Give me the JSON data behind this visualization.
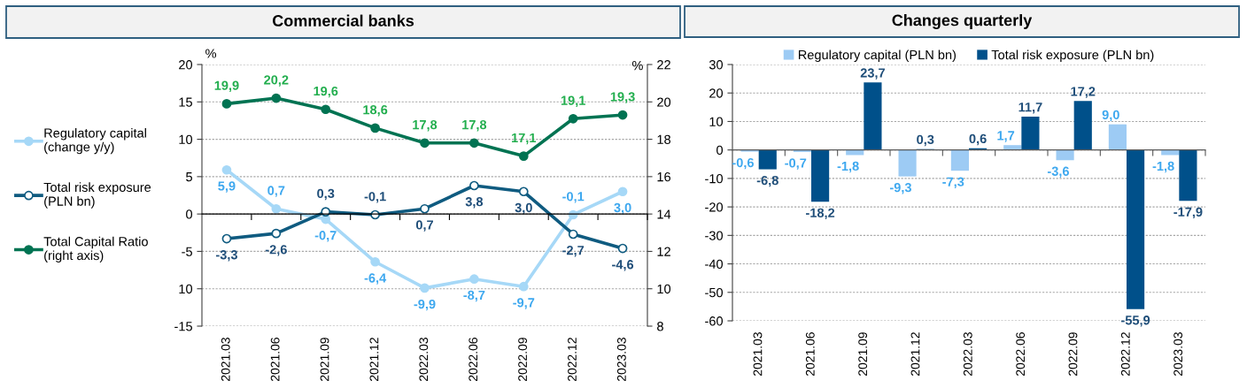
{
  "chart_data": [
    {
      "type": "line",
      "title": "Commercial banks",
      "ylabel": "%",
      "y2label": "%",
      "categories": [
        "2021.03",
        "2021.06",
        "2021.09",
        "2021.12",
        "2022.03",
        "2022.06",
        "2022.09",
        "2022.12",
        "2023.03"
      ],
      "series": [
        {
          "name": "Regulatory capital\n(change y/y)",
          "color": "#a6d8f7",
          "marker": "circle",
          "values": [
            5.9,
            0.7,
            -0.7,
            -6.4,
            -9.9,
            -8.7,
            -9.7,
            -0.1,
            3.0
          ],
          "value_labels": [
            "5,9",
            "0,7",
            "-0,7",
            "-6,4",
            "-9,9",
            "-8,7",
            "-9,7",
            "-0,1",
            "3,0"
          ]
        },
        {
          "name": "Total risk exposure\n(PLN bn)",
          "color": "#0f5b80",
          "marker": "circle",
          "values": [
            -3.3,
            -2.6,
            0.3,
            -0.1,
            0.7,
            3.8,
            3.0,
            -2.7,
            -4.6
          ],
          "value_labels": [
            "-3,3",
            "-2,6",
            "0,3",
            "-0,1",
            "0,7",
            "3,8",
            "3,0",
            "-2,7",
            "-4,6"
          ]
        },
        {
          "name": "Total Capital Ratio\n(right axis)",
          "color": "#007352",
          "marker": "circle",
          "axis": "y2",
          "values": [
            19.9,
            20.2,
            19.6,
            18.6,
            17.8,
            17.8,
            17.1,
            19.1,
            19.3
          ],
          "value_labels": [
            "19,9",
            "20,2",
            "19,6",
            "18,6",
            "17,8",
            "17,8",
            "17,1",
            "19,1",
            "19,3"
          ]
        }
      ],
      "ylim": [
        -15,
        20
      ],
      "yticks": [
        -15,
        {
          "value": -10,
          "label": "10"
        },
        -5,
        0,
        5,
        10,
        15,
        20
      ],
      "y2lim": [
        8,
        22
      ],
      "y2ticks": [
        8,
        10,
        12,
        14,
        16,
        18,
        20,
        22
      ],
      "grid": "y",
      "legend": "left"
    },
    {
      "type": "bar",
      "title": "Changes quarterly",
      "categories": [
        "2021.03",
        "2021.06",
        "2021.09",
        "2021.12",
        "2022.03",
        "2022.06",
        "2022.09",
        "2022.12",
        "2023.03"
      ],
      "series": [
        {
          "name": "Regulatory capital (PLN bn)",
          "color": "#9dcbf4",
          "values": [
            -0.6,
            -0.7,
            -1.8,
            -9.3,
            -7.3,
            1.7,
            -3.6,
            9.0,
            -1.8
          ],
          "value_labels": [
            "-0,6",
            "-0,7",
            "-1,8",
            "-9,3",
            "-7,3",
            "1,7",
            "-3,6",
            "9,0",
            "-1,8"
          ]
        },
        {
          "name": "Total risk exposure (PLN bn)",
          "color": "#00508a",
          "values": [
            -6.8,
            -18.2,
            23.7,
            0.3,
            0.6,
            11.7,
            17.2,
            -55.9,
            -17.9
          ],
          "value_labels": [
            "-6,8",
            "-18,2",
            "23,7",
            "0,3",
            "0,6",
            "11,7",
            "17,2",
            "-55,9",
            "-17,9"
          ]
        }
      ],
      "ylim": [
        -60,
        30
      ],
      "yticks": [
        -60,
        -50,
        -40,
        -30,
        -20,
        -10,
        0,
        10,
        20,
        30
      ],
      "grid": "y",
      "legend": "top"
    }
  ]
}
